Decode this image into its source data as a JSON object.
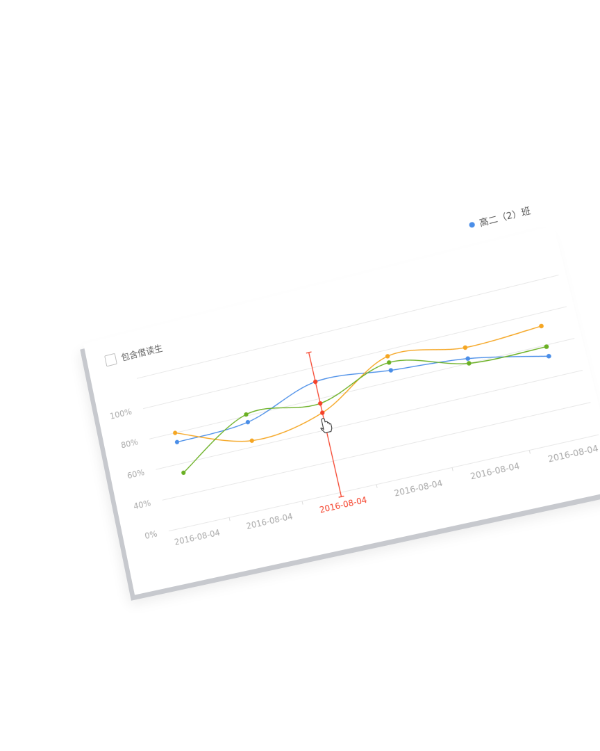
{
  "checkbox": {
    "label": "包含借读生",
    "checked": false
  },
  "legend": {
    "label": "高二（2）班",
    "color": "#4a8ee8"
  },
  "cursor_icon": "hand-pointer-icon",
  "chart_data": {
    "type": "line",
    "smooth": true,
    "categories": [
      "2016-08-04",
      "2016-08-04",
      "2016-08-04",
      "2016-08-04",
      "2016-08-04",
      "2016-08-04"
    ],
    "y_tick_labels": [
      "0%",
      "40%",
      "60%",
      "80%",
      "100%",
      ""
    ],
    "y_tick_values": [
      0,
      40,
      60,
      80,
      100,
      120
    ],
    "grid": true,
    "legend_position": "top-right",
    "highlighted_index": 2,
    "highlight_color": "#f5412a",
    "series": [
      {
        "name": "高二（2）班",
        "color": "#4a8ee8",
        "values": [
          74,
          76,
          91,
          87,
          83,
          73
        ]
      },
      {
        "color": "#f5a623",
        "values": [
          80,
          64,
          71,
          96,
          90,
          92
        ]
      },
      {
        "color": "#6ab023",
        "values": [
          54,
          81,
          77,
          92,
          80,
          79
        ]
      }
    ]
  }
}
